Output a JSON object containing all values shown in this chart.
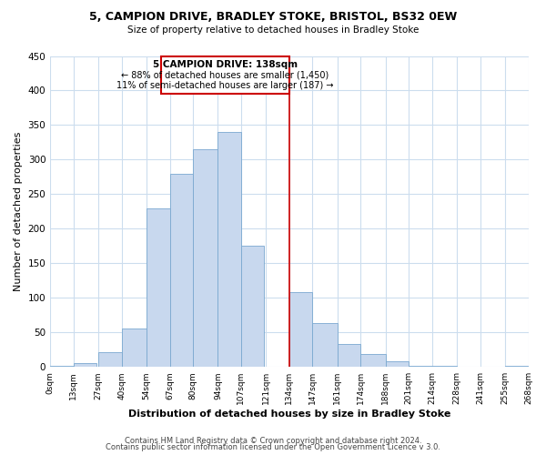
{
  "title1": "5, CAMPION DRIVE, BRADLEY STOKE, BRISTOL, BS32 0EW",
  "title2": "Size of property relative to detached houses in Bradley Stoke",
  "xlabel": "Distribution of detached houses by size in Bradley Stoke",
  "ylabel": "Number of detached properties",
  "footer1": "Contains HM Land Registry data © Crown copyright and database right 2024.",
  "footer2": "Contains public sector information licensed under the Open Government Licence v 3.0.",
  "bar_left_edges": [
    0,
    13,
    27,
    40,
    54,
    67,
    80,
    94,
    107,
    121,
    134,
    147,
    161,
    174,
    188,
    201,
    214,
    228,
    241,
    255
  ],
  "bar_heights": [
    1,
    6,
    22,
    55,
    230,
    280,
    315,
    340,
    175,
    0,
    108,
    63,
    33,
    19,
    8,
    2,
    1,
    0,
    0,
    1
  ],
  "bar_widths": [
    13,
    13,
    13,
    14,
    13,
    13,
    14,
    13,
    13,
    13,
    13,
    14,
    13,
    14,
    13,
    13,
    14,
    13,
    14,
    13
  ],
  "tick_labels": [
    "0sqm",
    "13sqm",
    "27sqm",
    "40sqm",
    "54sqm",
    "67sqm",
    "80sqm",
    "94sqm",
    "107sqm",
    "121sqm",
    "134sqm",
    "147sqm",
    "161sqm",
    "174sqm",
    "188sqm",
    "201sqm",
    "214sqm",
    "228sqm",
    "241sqm",
    "255sqm",
    "268sqm"
  ],
  "tick_positions": [
    0,
    13,
    27,
    40,
    54,
    67,
    80,
    94,
    107,
    121,
    134,
    147,
    161,
    174,
    188,
    201,
    214,
    228,
    241,
    255,
    268
  ],
  "bar_color": "#c8d8ee",
  "bar_edgecolor": "#7aa8d0",
  "vline_x": 134,
  "vline_color": "#cc0000",
  "annotation_title": "5 CAMPION DRIVE: 138sqm",
  "annotation_line1": "← 88% of detached houses are smaller (1,450)",
  "annotation_line2": "11% of semi-detached houses are larger (187) →",
  "annotation_box_edgecolor": "#cc0000",
  "xlim": [
    0,
    268
  ],
  "ylim": [
    0,
    450
  ],
  "yticks": [
    0,
    50,
    100,
    150,
    200,
    250,
    300,
    350,
    400,
    450
  ],
  "bg_color": "#ffffff",
  "plot_bg_color": "#ffffff",
  "grid_color": "#ccddee"
}
